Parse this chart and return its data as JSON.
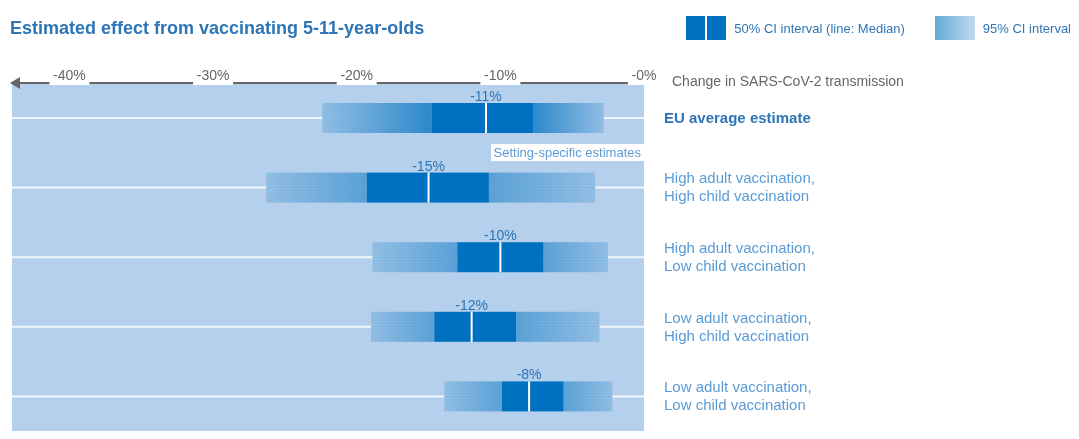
{
  "chart_data": {
    "type": "box",
    "orientation": "horizontal",
    "title": "Estimated effect from vaccinating 5-11-year-olds",
    "xlabel": "Change in SARS-CoV-2 transmission",
    "categories": [
      "EU average estimate",
      "High adult vaccination, High child vaccination",
      "High adult vaccination, Low child vaccination",
      "Low adult vaccination, High child vaccination",
      "Low adult vaccination, Low child vaccination"
    ],
    "value_labels": [
      "-11%",
      "-15%",
      "-10%",
      "-12%",
      "-8%"
    ],
    "series": [
      {
        "name": "50% CI interval (line: Median)",
        "color": "#0070c0",
        "boxes": [
          {
            "low": -22.4,
            "q1": -14.8,
            "median": -11,
            "q3": -7.7,
            "high": -2.8
          },
          {
            "low": -26.3,
            "q1": -19.3,
            "median": -15,
            "q3": -10.8,
            "high": -3.4
          },
          {
            "low": -18.9,
            "q1": -13,
            "median": -10,
            "q3": -7,
            "high": -2.5
          },
          {
            "low": -19,
            "q1": -14.6,
            "median": -12,
            "q3": -8.9,
            "high": -3.1
          },
          {
            "low": -13.9,
            "q1": -9.9,
            "median": -8,
            "q3": -5.6,
            "high": -2.2
          }
        ]
      }
    ],
    "legend": "top right",
    "grid": "y",
    "xlim": [
      -44,
      0
    ],
    "xticks": [
      {
        "value": -40,
        "label": "-40%"
      },
      {
        "value": -30,
        "label": "-30%"
      },
      {
        "value": -20,
        "label": "-20%"
      },
      {
        "value": -10,
        "label": "-10%"
      },
      {
        "value": 0,
        "label": "-0%"
      }
    ],
    "annotations": [
      "Setting-specific estimates",
      "95% CI interval"
    ]
  }
}
